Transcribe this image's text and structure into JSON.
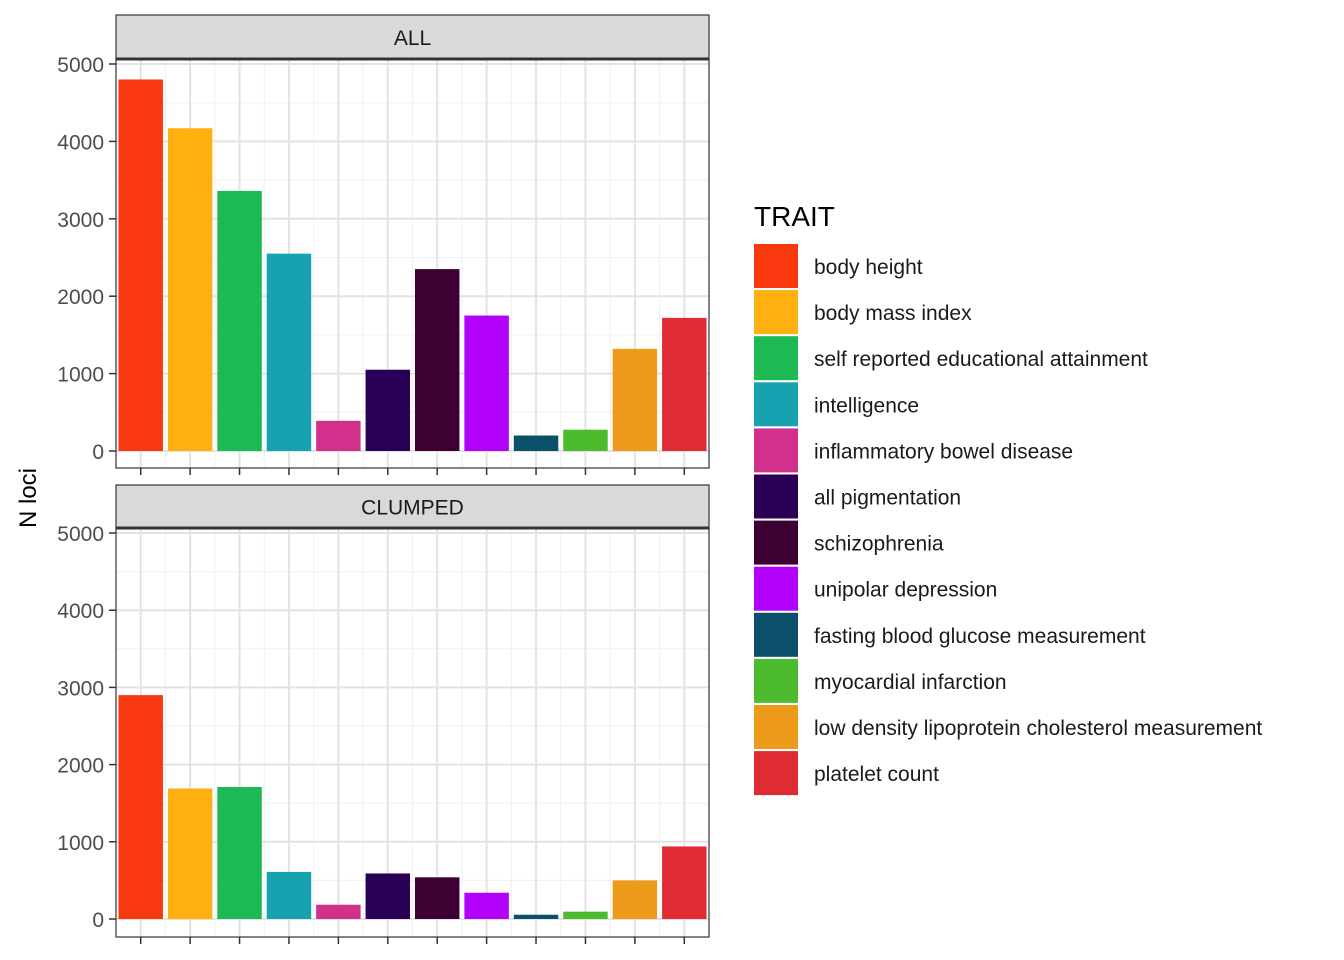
{
  "chart_data": {
    "type": "bar",
    "ylabel": "N loci",
    "ylim": [
      0,
      5200
    ],
    "yticks": [
      0,
      1000,
      2000,
      3000,
      4000,
      5000
    ],
    "grid": true,
    "legend": {
      "title": "TRAIT",
      "placement": "right"
    },
    "categories": [
      "body height",
      "body mass index",
      "self reported educational attainment",
      "intelligence",
      "inflammatory bowel disease",
      "all pigmentation",
      "schizophrenia",
      "unipolar depression",
      "fasting blood glucose measurement",
      "myocardial infarction",
      "low density lipoprotein cholesterol measurement",
      "platelet count"
    ],
    "colors": [
      "#F8380E",
      "#FDB010",
      "#1DB954",
      "#17A2B0",
      "#D1318A",
      "#2A0057",
      "#3D0033",
      "#B200F9",
      "#0C4F6B",
      "#4DBB2E",
      "#EE9A1A",
      "#E02B35"
    ],
    "panels": [
      {
        "title": "ALL",
        "values": [
          4800,
          4170,
          3360,
          2550,
          390,
          1050,
          2350,
          1750,
          200,
          275,
          1320,
          1720
        ]
      },
      {
        "title": "CLUMPED",
        "values": [
          2900,
          1690,
          1710,
          610,
          185,
          590,
          540,
          340,
          55,
          95,
          500,
          940
        ]
      }
    ]
  }
}
